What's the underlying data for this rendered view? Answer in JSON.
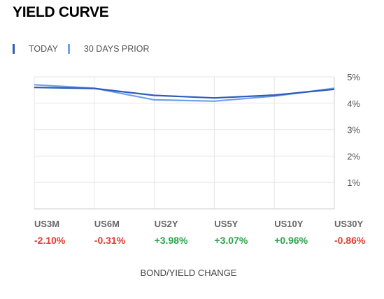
{
  "header": {
    "title": "YIELD CURVE"
  },
  "legend": [
    {
      "label": "TODAY",
      "color": "#2e5cb8"
    },
    {
      "label": "30 DAYS PRIOR",
      "color": "#6fa0ea"
    }
  ],
  "chart_data": {
    "type": "line",
    "categories": [
      "US3M",
      "US6M",
      "US2Y",
      "US5Y",
      "US10Y",
      "US30Y"
    ],
    "series": [
      {
        "name": "TODAY",
        "values": [
          4.6,
          4.56,
          4.3,
          4.2,
          4.31,
          4.53
        ],
        "color": "#2e5cb8"
      },
      {
        "name": "30 DAYS PRIOR",
        "values": [
          4.7,
          4.57,
          4.13,
          4.08,
          4.27,
          4.57
        ],
        "color": "#6fa0ea"
      }
    ],
    "y_ticks": [
      "1%",
      "2%",
      "3%",
      "4%",
      "5%"
    ],
    "ylim": [
      0,
      5
    ],
    "grid": true,
    "changes": [
      {
        "value": "-2.10%",
        "color": "#e03c31"
      },
      {
        "value": "-0.31%",
        "color": "#e03c31"
      },
      {
        "value": "+3.98%",
        "color": "#2aa44a"
      },
      {
        "value": "+3.07%",
        "color": "#2aa44a"
      },
      {
        "value": "+0.96%",
        "color": "#2aa44a"
      },
      {
        "value": "-0.86%",
        "color": "#e03c31"
      }
    ],
    "xlabel": "BOND/YIELD CHANGE"
  }
}
